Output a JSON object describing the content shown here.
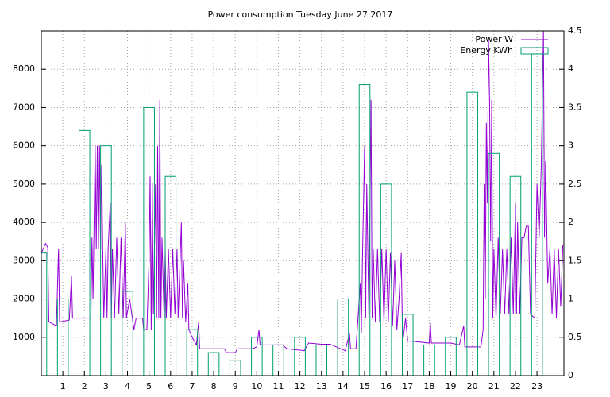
{
  "chart_data": {
    "type": "line",
    "title": "Power consumption Tuesday June 27 2017",
    "xlim": [
      0,
      24.25
    ],
    "xticks": [
      1,
      2,
      3,
      4,
      5,
      6,
      7,
      8,
      9,
      10,
      11,
      12,
      13,
      14,
      15,
      16,
      17,
      18,
      19,
      20,
      21,
      22,
      23
    ],
    "ylim": [
      0,
      9000
    ],
    "yticks": [
      1000,
      2000,
      3000,
      4000,
      5000,
      6000,
      7000,
      8000
    ],
    "y2lim": [
      0,
      4.5
    ],
    "y2ticks": [
      0,
      0.5,
      1,
      1.5,
      2,
      2.5,
      3,
      3.5,
      4,
      4.5
    ],
    "grid": true,
    "legend": "top-right",
    "series": [
      {
        "name": "Power W",
        "color": "#9400d3",
        "type": "line",
        "x": [
          0,
          0.2,
          0.3,
          0.35,
          0.7,
          0.8,
          0.85,
          1.3,
          1.4,
          1.45,
          1.9,
          2.3,
          2.35,
          2.4,
          2.5,
          2.55,
          2.6,
          2.65,
          2.7,
          2.75,
          2.8,
          2.85,
          2.9,
          3.0,
          3.05,
          3.1,
          3.2,
          3.25,
          3.3,
          3.4,
          3.5,
          3.6,
          3.7,
          3.8,
          3.9,
          3.95,
          4.1,
          4.3,
          4.4,
          4.7,
          4.75,
          4.9,
          5.0,
          5.05,
          5.1,
          5.15,
          5.2,
          5.3,
          5.35,
          5.4,
          5.45,
          5.5,
          5.55,
          5.6,
          5.7,
          5.75,
          5.8,
          5.9,
          6.0,
          6.1,
          6.2,
          6.3,
          6.35,
          6.5,
          6.55,
          6.6,
          6.7,
          6.8,
          6.85,
          7.0,
          7.2,
          7.3,
          7.35,
          8,
          8.5,
          8.6,
          9,
          9.1,
          9.8,
          10,
          10.1,
          10.15,
          11.2,
          11.4,
          12.2,
          12.4,
          13.0,
          13.4,
          14.1,
          14.3,
          14.35,
          14.6,
          14.8,
          14.85,
          14.9,
          15.0,
          15.05,
          15.1,
          15.2,
          15.3,
          15.35,
          15.4,
          15.5,
          15.6,
          15.7,
          15.8,
          15.9,
          16.0,
          16.1,
          16.2,
          16.3,
          16.4,
          16.5,
          16.6,
          16.7,
          16.75,
          16.8,
          16.9,
          17.0,
          17.2,
          18,
          18.05,
          18.1,
          19.0,
          19.4,
          19.6,
          19.65,
          20.4,
          20.5,
          20.55,
          20.6,
          20.65,
          20.7,
          20.75,
          20.8,
          20.85,
          20.9,
          20.95,
          21.0,
          21.1,
          21.2,
          21.3,
          21.4,
          21.5,
          21.6,
          21.7,
          21.8,
          21.9,
          22.0,
          22.05,
          22.1,
          22.2,
          22.3,
          22.4,
          22.5,
          22.6,
          22.7,
          22.9,
          23.0,
          23.1,
          23.2,
          23.3,
          23.35,
          23.4,
          23.5,
          23.6,
          23.7,
          23.8,
          23.9,
          24.0,
          24.1,
          24.2
        ],
        "values": [
          3200,
          3450,
          3350,
          1400,
          1300,
          3300,
          1400,
          1450,
          2600,
          1500,
          1500,
          1500,
          3600,
          2000,
          6000,
          3300,
          6000,
          3300,
          6000,
          3300,
          5500,
          3300,
          1500,
          3300,
          1500,
          3300,
          4500,
          1500,
          3300,
          1500,
          3600,
          1600,
          3600,
          1500,
          4000,
          1500,
          2000,
          1200,
          1500,
          1500,
          1200,
          1200,
          3000,
          5200,
          1200,
          5000,
          1600,
          5000,
          1500,
          6000,
          1500,
          7200,
          1500,
          3600,
          1500,
          3300,
          1500,
          3300,
          1500,
          3300,
          1600,
          3300,
          1500,
          4000,
          1500,
          3000,
          1400,
          2400,
          1200,
          1000,
          800,
          1400,
          700,
          700,
          700,
          600,
          600,
          700,
          700,
          750,
          1200,
          800,
          800,
          700,
          650,
          850,
          820,
          820,
          650,
          1100,
          700,
          700,
          2400,
          1100,
          3000,
          6000,
          1500,
          5000,
          1500,
          7200,
          1500,
          3300,
          1400,
          3300,
          1400,
          3300,
          1400,
          3300,
          1400,
          3200,
          1300,
          3000,
          1200,
          2000,
          3200,
          1400,
          1000,
          1500,
          900,
          900,
          850,
          1400,
          850,
          850,
          800,
          1300,
          750,
          750,
          1200,
          5000,
          2000,
          6600,
          4500,
          8800,
          7200,
          3500,
          7200,
          1500,
          3300,
          1500,
          3600,
          1600,
          3300,
          1600,
          3300,
          1600,
          3600,
          1600,
          4500,
          1600,
          4000,
          1600,
          3600,
          3600,
          3900,
          3900,
          1600,
          1500,
          5000,
          3600,
          5500,
          9000,
          3600,
          5600,
          2400,
          3300,
          1600,
          3300,
          1500,
          3300,
          1800,
          3400
        ]
      },
      {
        "name": "Energy KWh",
        "color": "#009e73",
        "type": "bar",
        "axis": "y2",
        "x": [
          0,
          1,
          2,
          3,
          4,
          5,
          6,
          7,
          8,
          9,
          10,
          11,
          12,
          13,
          14,
          15,
          16,
          17,
          18,
          19,
          20,
          21,
          22,
          23
        ],
        "values": [
          1.6,
          1.0,
          3.2,
          3.0,
          1.1,
          3.5,
          2.6,
          0.6,
          0.3,
          0.2,
          0.5,
          0.4,
          0.5,
          0.4,
          1.0,
          3.8,
          2.5,
          0.8,
          0.4,
          0.5,
          3.7,
          2.9,
          2.6,
          4.2
        ]
      }
    ]
  }
}
